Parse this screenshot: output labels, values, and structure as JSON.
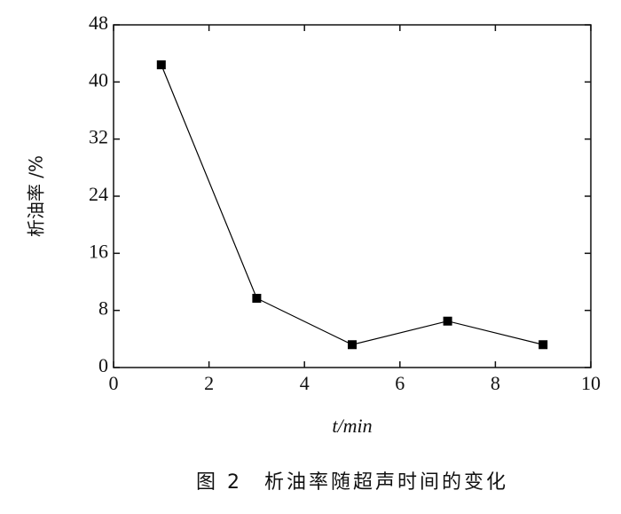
{
  "chart_data": {
    "type": "line",
    "x": [
      1,
      3,
      5,
      7,
      9
    ],
    "series": [
      {
        "name": "析油率",
        "color": "#000000",
        "values": [
          42.4,
          9.7,
          3.2,
          6.5,
          3.2
        ]
      }
    ],
    "xlim": [
      0,
      10
    ],
    "xticks": [
      0,
      2,
      4,
      6,
      8,
      10
    ],
    "ylim": [
      0,
      48
    ],
    "yticks": [
      0,
      8,
      16,
      24,
      32,
      40,
      48
    ],
    "xlabel": "t/min",
    "ylabel": "析油率 /%",
    "caption": "图 2　析油率随超声时间的变化",
    "grid": false
  }
}
